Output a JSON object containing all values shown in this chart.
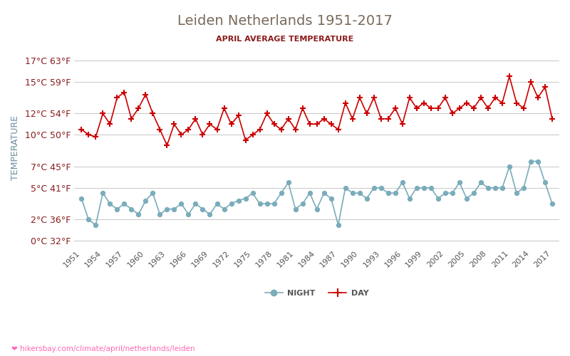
{
  "title": "Leiden Netherlands 1951-2017",
  "subtitle": "APRIL AVERAGE TEMPERATURE",
  "ylabel": "TEMPERATURE",
  "url_text": "hikersbay.com/climate/april/netherlands/leiden",
  "title_color": "#7a6a5a",
  "subtitle_color": "#8b1a1a",
  "ylabel_color": "#6a8fa0",
  "url_color": "#ff69b4",
  "background_color": "#ffffff",
  "grid_color": "#cccccc",
  "ytick_color": "#8b1a1a",
  "xtick_color": "#555555",
  "years": [
    1951,
    1952,
    1953,
    1954,
    1955,
    1956,
    1957,
    1958,
    1959,
    1960,
    1961,
    1962,
    1963,
    1964,
    1965,
    1966,
    1967,
    1968,
    1969,
    1970,
    1971,
    1972,
    1973,
    1974,
    1975,
    1976,
    1977,
    1978,
    1979,
    1980,
    1981,
    1982,
    1983,
    1984,
    1985,
    1986,
    1987,
    1988,
    1989,
    1990,
    1991,
    1992,
    1993,
    1994,
    1995,
    1996,
    1997,
    1998,
    1999,
    2000,
    2001,
    2002,
    2003,
    2004,
    2005,
    2006,
    2007,
    2008,
    2009,
    2010,
    2011,
    2012,
    2013,
    2014,
    2015,
    2016,
    2017
  ],
  "day_temps": [
    10.5,
    10.0,
    9.8,
    12.0,
    11.0,
    13.5,
    14.0,
    11.5,
    12.5,
    13.8,
    12.0,
    10.5,
    9.0,
    11.0,
    10.0,
    10.5,
    11.5,
    10.0,
    11.0,
    10.5,
    12.5,
    11.0,
    11.8,
    9.5,
    10.0,
    10.5,
    12.0,
    11.0,
    10.5,
    11.5,
    10.5,
    12.5,
    11.0,
    11.0,
    11.5,
    11.0,
    10.5,
    13.0,
    11.5,
    13.5,
    12.0,
    13.5,
    11.5,
    11.5,
    12.5,
    11.0,
    13.5,
    12.5,
    13.0,
    12.5,
    12.5,
    13.5,
    12.0,
    12.5,
    13.0,
    12.5,
    13.5,
    12.5,
    13.5,
    13.0,
    15.5,
    13.0,
    12.5,
    15.0,
    13.5,
    14.5,
    11.5
  ],
  "night_temps": [
    4.0,
    2.0,
    1.5,
    4.5,
    3.5,
    3.0,
    3.5,
    3.0,
    2.5,
    3.8,
    4.5,
    2.5,
    3.0,
    3.0,
    3.5,
    2.5,
    3.5,
    3.0,
    2.5,
    3.5,
    3.0,
    3.5,
    3.8,
    4.0,
    4.5,
    3.5,
    3.5,
    3.5,
    4.5,
    5.5,
    3.0,
    3.5,
    4.5,
    3.0,
    4.5,
    4.0,
    1.5,
    5.0,
    4.5,
    4.5,
    4.0,
    5.0,
    5.0,
    4.5,
    4.5,
    5.5,
    4.0,
    5.0,
    5.0,
    5.0,
    4.0,
    4.5,
    4.5,
    5.5,
    4.0,
    4.5,
    5.5,
    5.0,
    5.0,
    5.0,
    7.0,
    4.5,
    5.0,
    7.5,
    7.5,
    5.5,
    3.5
  ],
  "day_color": "#cc0000",
  "night_color": "#7aacba",
  "day_marker": "+",
  "night_marker": "o",
  "yticks_c": [
    0,
    2,
    5,
    7,
    10,
    12,
    15,
    17
  ],
  "ytick_labels": [
    "0°C 32°F",
    "2°C 36°F",
    "5°C 41°F",
    "7°C 45°F",
    "10°C 50°F",
    "12°C 54°F",
    "15°C 59°F",
    "17°C 63°F"
  ],
  "xtick_years": [
    1951,
    1954,
    1957,
    1960,
    1963,
    1966,
    1969,
    1972,
    1975,
    1978,
    1981,
    1984,
    1987,
    1990,
    1993,
    1996,
    1999,
    2002,
    2005,
    2008,
    2011,
    2014,
    2017
  ],
  "ylim": [
    -0.5,
    18.0
  ],
  "xlim": [
    1950,
    2018
  ]
}
